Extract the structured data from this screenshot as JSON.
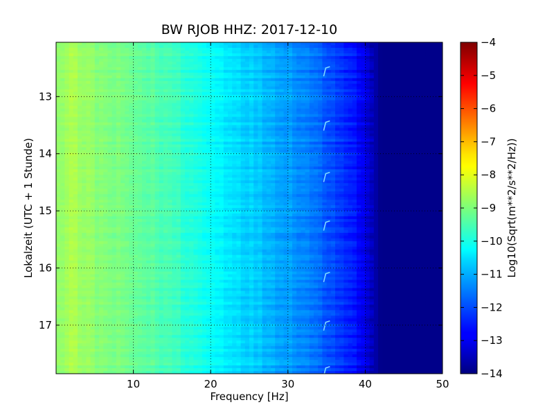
{
  "chart_data": {
    "type": "heatmap",
    "title": "BW RJOB HHZ: 2017-12-10",
    "xlabel": "Frequency [Hz]",
    "ylabel": "Lokalzeit (UTC + 1 Stunde)",
    "xlim": [
      0,
      50
    ],
    "ylim": [
      17.85,
      12.05
    ],
    "x_ticks": [
      10,
      20,
      30,
      40,
      50
    ],
    "y_ticks": [
      13,
      14,
      15,
      16,
      17
    ],
    "x_tick_labels": [
      "10",
      "20",
      "30",
      "40",
      "50"
    ],
    "y_tick_labels": [
      "13",
      "14",
      "15",
      "16",
      "17"
    ],
    "grid": true,
    "colorbar": {
      "label": "Log10(Sqrt(m**2/s**2/Hz))",
      "range": [
        -14,
        -4
      ],
      "ticks": [
        -4,
        -5,
        -6,
        -7,
        -8,
        -9,
        -10,
        -11,
        -12,
        -13,
        -14
      ],
      "tick_labels": [
        "−4",
        "−5",
        "−6",
        "−7",
        "−8",
        "−9",
        "−10",
        "−11",
        "−12",
        "−13",
        "−14"
      ],
      "colormap": "jet"
    },
    "frequency_profile": {
      "frequency_hz": [
        0,
        2,
        5,
        10,
        15,
        20,
        24,
        28,
        32,
        35,
        38,
        40,
        42,
        50
      ],
      "log_amplitude": [
        -8.8,
        -8.6,
        -8.9,
        -9.2,
        -9.6,
        -10.2,
        -10.6,
        -11.0,
        -11.4,
        -11.9,
        -12.4,
        -13.0,
        -13.9,
        -13.9
      ]
    },
    "events": [
      {
        "time": 12.5,
        "frequency_hz": 34.8
      },
      {
        "time": 13.45,
        "frequency_hz": 34.8
      },
      {
        "time": 14.35,
        "frequency_hz": 34.8
      },
      {
        "time": 15.2,
        "frequency_hz": 34.8
      },
      {
        "time": 16.1,
        "frequency_hz": 34.8
      },
      {
        "time": 16.95,
        "frequency_hz": 34.8
      },
      {
        "time": 17.75,
        "frequency_hz": 34.8
      }
    ]
  }
}
